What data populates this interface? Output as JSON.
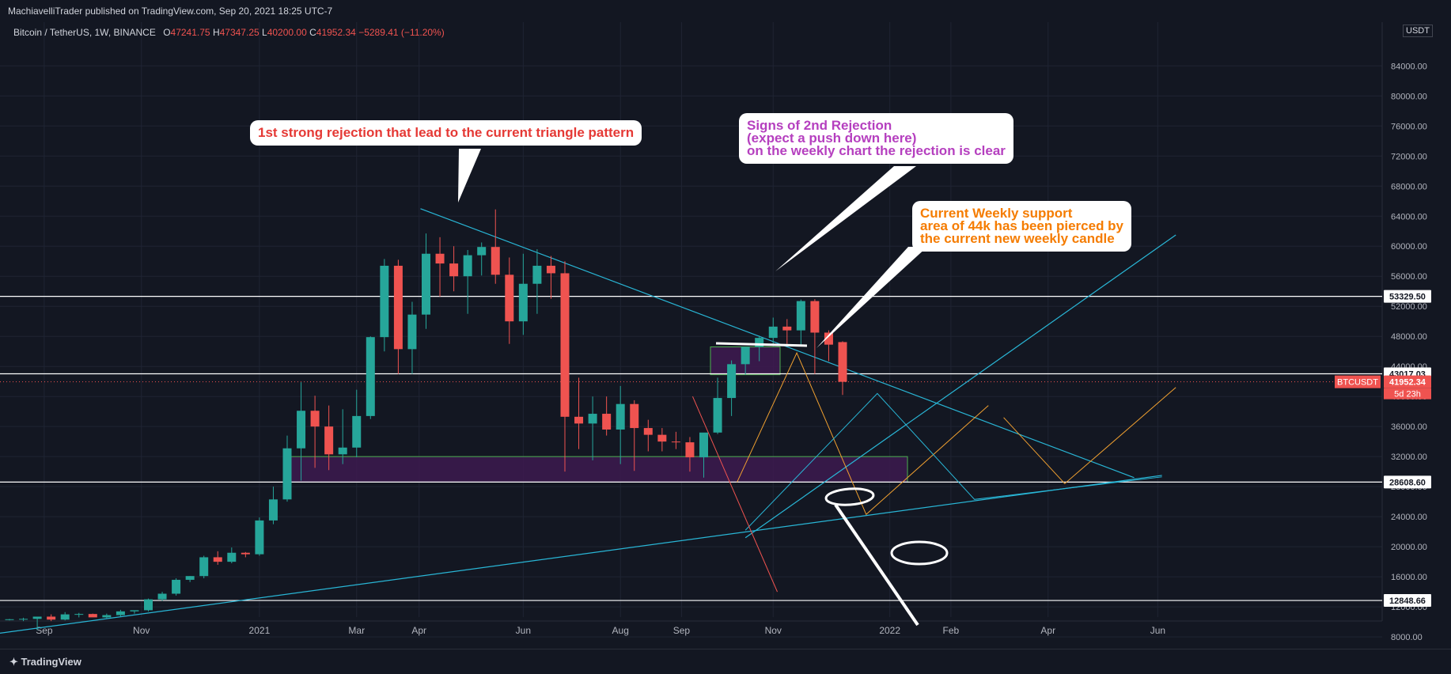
{
  "header": {
    "published": "MachiavelliTrader published on TradingView.com, Sep 20, 2021 18:25 UTC-7",
    "symbol": "Bitcoin / TetherUS, 1W, BINANCE",
    "o_label": "O",
    "o": "47241.75",
    "h_label": "H",
    "h": "47347.25",
    "l_label": "L",
    "l": "40200.00",
    "c_label": "C",
    "c": "41952.34",
    "change": "−5289.41 (−11.20%)",
    "currency": "USDT"
  },
  "footer": {
    "brand": "TradingView"
  },
  "callouts": {
    "rejection1": "1st strong rejection that lead to the current triangle pattern",
    "rejection2": "Signs of 2nd Rejection\n(expect a push down here)\non the weekly chart the rejection is clear",
    "support": "Current Weekly support\narea of 44k has been pierced by\nthe current new weekly candle"
  },
  "colors": {
    "bg": "#131722",
    "up": "#26a69a",
    "down": "#ef5350",
    "zone": "#3d1a4f",
    "trend": "#29b6d6",
    "proj_orange": "#f0a030",
    "level": "#ffffff"
  },
  "chart_data": {
    "type": "candlestick",
    "interval": "1W",
    "y_ticks": [
      8000,
      12000,
      16000,
      20000,
      24000,
      28000,
      32000,
      36000,
      40000,
      44000,
      48000,
      52000,
      56000,
      60000,
      64000,
      68000,
      72000,
      76000,
      80000,
      84000
    ],
    "x_ticks": [
      "Sep",
      "Nov",
      "2021",
      "Mar",
      "Apr",
      "Jun",
      "Aug",
      "Sep",
      "Nov",
      "2022",
      "Feb",
      "Apr",
      "Jun"
    ],
    "price_labels": [
      "53329.50",
      "43017.03",
      "28608.60",
      "12848.66"
    ],
    "current": {
      "symbol": "BTCUSDT",
      "price": "41952.34",
      "countdown": "5d 23h"
    },
    "candles": [
      [
        10300,
        10400,
        10200,
        10350
      ],
      [
        10350,
        10550,
        10100,
        10400
      ],
      [
        10400,
        10450,
        8900,
        10700
      ],
      [
        10700,
        11000,
        10100,
        10300
      ],
      [
        10300,
        11300,
        10200,
        11000
      ],
      [
        11000,
        11200,
        10600,
        11050
      ],
      [
        11050,
        11100,
        10700,
        10600
      ],
      [
        10600,
        11100,
        10500,
        10900
      ],
      [
        10900,
        11600,
        10700,
        11400
      ],
      [
        11400,
        11500,
        11100,
        11550
      ],
      [
        11550,
        13100,
        11400,
        13000
      ],
      [
        13000,
        14000,
        12800,
        13750
      ],
      [
        13750,
        15800,
        13500,
        15600
      ],
      [
        15600,
        16100,
        15300,
        16100
      ],
      [
        16100,
        18800,
        15800,
        18600
      ],
      [
        18600,
        19400,
        17600,
        18000
      ],
      [
        18000,
        19900,
        17800,
        19200
      ],
      [
        19200,
        19300,
        18600,
        19000
      ],
      [
        19000,
        23900,
        18800,
        23500
      ],
      [
        23500,
        28000,
        23000,
        26300
      ],
      [
        26300,
        34800,
        26000,
        33100
      ],
      [
        33100,
        41900,
        28800,
        38100
      ],
      [
        38100,
        40100,
        30500,
        36000
      ],
      [
        36000,
        38800,
        30200,
        32300
      ],
      [
        32300,
        38300,
        31000,
        33200
      ],
      [
        33200,
        40900,
        31900,
        37400
      ],
      [
        37400,
        48000,
        37000,
        47900
      ],
      [
        47900,
        58300,
        46000,
        57400
      ],
      [
        57400,
        58200,
        43000,
        46300
      ],
      [
        46300,
        52600,
        43000,
        50900
      ],
      [
        50900,
        61700,
        49000,
        59000
      ],
      [
        59000,
        61200,
        53300,
        57700
      ],
      [
        57700,
        60000,
        54000,
        56000
      ],
      [
        56000,
        59500,
        51000,
        58800
      ],
      [
        58800,
        60500,
        56100,
        59900
      ],
      [
        59900,
        64900,
        55000,
        56200
      ],
      [
        56200,
        58500,
        47000,
        50000
      ],
      [
        50000,
        59000,
        48200,
        55000
      ],
      [
        55000,
        59600,
        51000,
        57400
      ],
      [
        57400,
        58700,
        53000,
        56400
      ],
      [
        56400,
        58000,
        30000,
        37300
      ],
      [
        37300,
        42500,
        33000,
        36400
      ],
      [
        36400,
        40000,
        31500,
        37700
      ],
      [
        37700,
        40000,
        34800,
        35600
      ],
      [
        35600,
        41400,
        31000,
        39000
      ],
      [
        39000,
        39500,
        30100,
        35800
      ],
      [
        35800,
        36900,
        32700,
        34900
      ],
      [
        34900,
        35800,
        32700,
        34000
      ],
      [
        34000,
        35300,
        33000,
        33900
      ],
      [
        33900,
        34600,
        30000,
        31900
      ],
      [
        31900,
        35100,
        29200,
        35200
      ],
      [
        35200,
        42500,
        35000,
        39800
      ],
      [
        39800,
        44800,
        37400,
        44300
      ],
      [
        44300,
        46300,
        42900,
        46600
      ],
      [
        46600,
        48100,
        44700,
        47800
      ],
      [
        47800,
        50500,
        46700,
        49300
      ],
      [
        49300,
        50300,
        47000,
        48800
      ],
      [
        48800,
        52900,
        46800,
        52700
      ],
      [
        52700,
        52950,
        43000,
        48500
      ],
      [
        48500,
        48800,
        44700,
        46900
      ],
      [
        47240,
        47347,
        40200,
        41952
      ]
    ]
  }
}
